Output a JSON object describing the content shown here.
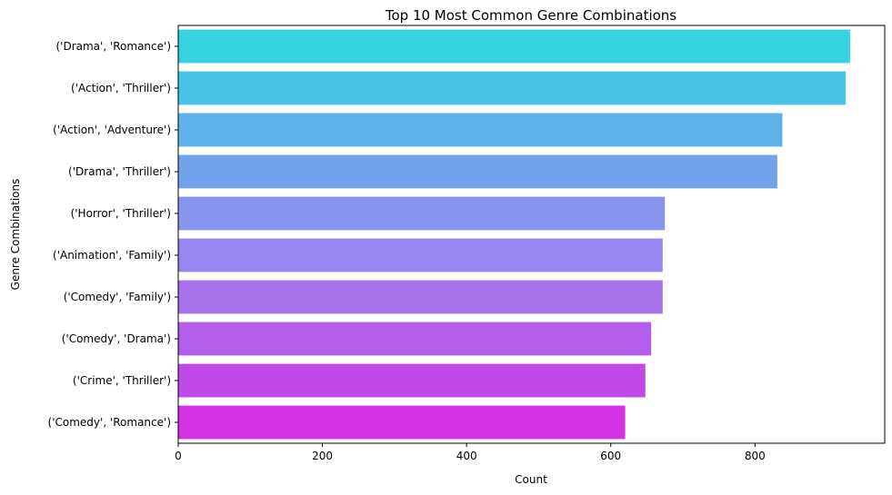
{
  "chart_data": {
    "type": "bar",
    "orientation": "horizontal",
    "title": "Top 10 Most Common Genre Combinations",
    "xlabel": "Count",
    "ylabel": "Genre Combinations",
    "categories": [
      "('Drama', 'Romance')",
      "('Action', 'Thriller')",
      "('Action', 'Adventure')",
      "('Drama', 'Thriller')",
      "('Horror', 'Thriller')",
      "('Animation', 'Family')",
      "('Comedy', 'Family')",
      "('Comedy', 'Drama')",
      "('Crime', 'Thriller')",
      "('Comedy', 'Romance')"
    ],
    "values": [
      932,
      926,
      838,
      831,
      675,
      672,
      672,
      656,
      648,
      620
    ],
    "xlim": [
      0,
      980
    ],
    "xticks": [
      0,
      200,
      400,
      600,
      800
    ],
    "grid": false,
    "legend": "none",
    "colors": [
      "#36d4e1",
      "#49c2e8",
      "#5db2ea",
      "#72a2ec",
      "#8694ee",
      "#9885ef",
      "#a572ec",
      "#b35deb",
      "#c149e8",
      "#d232e2"
    ]
  }
}
